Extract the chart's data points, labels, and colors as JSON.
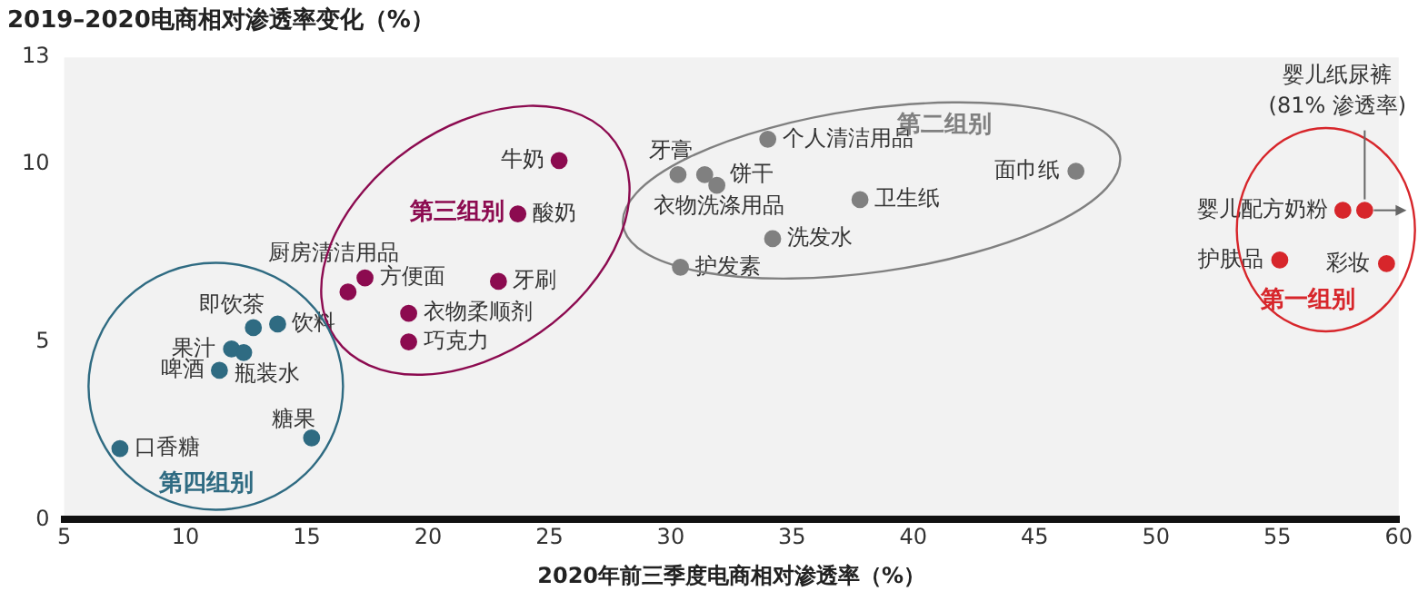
{
  "chart_data": {
    "type": "scatter",
    "title": "2019–2020电商相对渗透率变化（%）",
    "xlabel": "2020年前三季度电商相对渗透率（%）",
    "xlim": [
      5,
      60
    ],
    "xticks": [
      5,
      10,
      15,
      20,
      25,
      30,
      35,
      40,
      45,
      50,
      55,
      60
    ],
    "ylim": [
      0,
      13
    ],
    "yticks": [
      0,
      5,
      10,
      13
    ],
    "grid": false,
    "legend": false,
    "marker": "circle",
    "series": [
      {
        "name": "第一组别",
        "color": "#d7262b",
        "x": [
          57.7,
          58.6,
          55.1,
          59.5
        ],
        "values": [
          8.7,
          8.7,
          7.3,
          7.2
        ]
      },
      {
        "name": "第二组别",
        "color": "#808080",
        "x": [
          34.0,
          30.3,
          31.4,
          31.9,
          37.8,
          34.2,
          30.4,
          46.7
        ],
        "values": [
          10.7,
          9.7,
          9.7,
          9.4,
          9.0,
          7.9,
          7.1,
          9.8
        ]
      },
      {
        "name": "第三组别",
        "color": "#8c0b50",
        "x": [
          25.4,
          23.7,
          16.7,
          17.4,
          22.9,
          19.2,
          19.2
        ],
        "values": [
          10.1,
          8.6,
          6.4,
          6.8,
          6.7,
          5.8,
          5.0
        ]
      },
      {
        "name": "第四组别",
        "color": "#2f6b82",
        "x": [
          7.3,
          12.8,
          13.8,
          11.9,
          12.4,
          11.4,
          15.2
        ],
        "values": [
          2.0,
          5.4,
          5.5,
          4.8,
          4.7,
          4.2,
          2.3
        ]
      }
    ],
    "annotations": [
      {
        "text": "婴儿配方奶粉",
        "x": 57.7,
        "y": 8.7
      },
      "婴儿纸尿裤",
      {
        "text": "(81% 渗透率)",
        "x": 58.6,
        "y": 8.7
      },
      {
        "text": "护肤品",
        "x": 55.1,
        "y": 7.3
      },
      {
        "text": "彩妆",
        "x": 59.5,
        "y": 7.2
      },
      {
        "text": "个人清洁用品",
        "x": 34.0,
        "y": 10.7
      },
      {
        "text": "牙膏",
        "x": 30.3,
        "y": 9.7
      },
      {
        "text": "饼干",
        "x": 31.4,
        "y": 9.7
      },
      {
        "text": "衣物洗涤用品",
        "x": 31.9,
        "y": 9.4
      },
      {
        "text": "卫生纸",
        "x": 37.8,
        "y": 9.0
      },
      {
        "text": "洗发水",
        "x": 34.2,
        "y": 7.9
      },
      {
        "text": "护发素",
        "x": 30.4,
        "y": 7.1
      },
      {
        "text": "面巾纸",
        "x": 46.7,
        "y": 9.8
      },
      {
        "text": "牛奶",
        "x": 25.4,
        "y": 10.1
      },
      {
        "text": "酸奶",
        "x": 23.7,
        "y": 8.6
      },
      {
        "text": "厨房清洁用品",
        "x": 16.7,
        "y": 6.4
      },
      {
        "text": "方便面",
        "x": 17.4,
        "y": 6.8
      },
      {
        "text": "牙刷",
        "x": 22.9,
        "y": 6.7
      },
      {
        "text": "衣物柔顺剂",
        "x": 19.2,
        "y": 5.8
      },
      {
        "text": "巧克力",
        "x": 19.2,
        "y": 5.0
      },
      {
        "text": "口香糖",
        "x": 7.3,
        "y": 2.0
      },
      {
        "text": "即饮茶",
        "x": 12.8,
        "y": 5.4
      },
      {
        "text": "饮料",
        "x": 13.8,
        "y": 5.5
      },
      {
        "text": "果汁",
        "x": 11.9,
        "y": 4.8
      },
      {
        "text": "瓶装水",
        "x": 12.4,
        "y": 4.7
      },
      {
        "text": "啤酒",
        "x": 11.4,
        "y": 4.2
      },
      {
        "text": "糖果",
        "x": 15.2,
        "y": 2.3
      }
    ]
  }
}
